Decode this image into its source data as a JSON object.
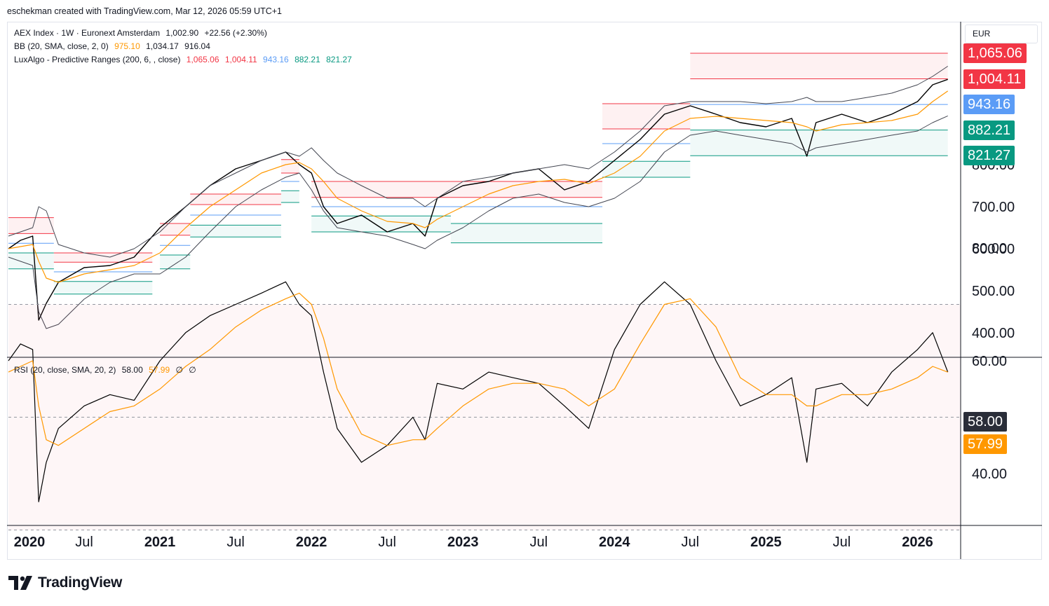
{
  "header": {
    "attribution": "eschekman created with TradingView.com, Mar 12, 2026 05:59 UTC+1"
  },
  "currency": "EUR",
  "legend": {
    "line1": {
      "name": "AEX Index · 1W · Euronext Amsterdam",
      "price": "1,002.90",
      "change": "+22.56 (+2.30%)"
    },
    "line2": {
      "name": "BB (20, SMA, close, 2, 0)",
      "basis": "975.10",
      "upper": "1,034.17",
      "lower": "916.04"
    },
    "line3": {
      "name": "LuxAlgo - Predictive Ranges (200, 6, , close)",
      "r2": "1,065.06",
      "r1": "1,004.11",
      "avg": "943.16",
      "s1": "882.21",
      "s2": "821.27"
    },
    "rsi": {
      "name": "RSI (20, close, SMA, 20, 2)",
      "rsi": "58.00",
      "ma": "57.99",
      "extra1": "∅",
      "extra2": "∅"
    }
  },
  "price_tags": [
    {
      "label": "1,065.06",
      "value": 1065.06,
      "color": "#f23645"
    },
    {
      "label": "1,004.11",
      "value": 1004.11,
      "color": "#f23645"
    },
    {
      "label": "943.16",
      "value": 943.16,
      "color": "#5b9cf6"
    },
    {
      "label": "882.21",
      "value": 882.21,
      "color": "#089981"
    },
    {
      "label": "821.27",
      "value": 821.27,
      "color": "#089981"
    }
  ],
  "rsi_tags": [
    {
      "label": "58.00",
      "value": 58.0,
      "color": "#2a2e39"
    },
    {
      "label": "57.99",
      "value": 57.99,
      "color": "#ff9800"
    }
  ],
  "logo": {
    "text": "TradingView"
  },
  "colors": {
    "price": "#000000",
    "basis": "#ff9800",
    "bands": "#434651",
    "resistance": "#f23645",
    "average": "#5b9cf6",
    "support": "#089981",
    "rsi": "#000000",
    "rsi_ma": "#ff9800"
  },
  "chart_data": [
    {
      "type": "line",
      "title": "AEX Index · 1W · Euronext Amsterdam",
      "y_axis_ticks": [
        "400.00",
        "500.00",
        "600.00",
        "700.00",
        "800.00"
      ],
      "ylim": [
        330,
        1120
      ],
      "x_axis_ticks": [
        "2020",
        "Jul",
        "2021",
        "Jul",
        "2022",
        "Jul",
        "2023",
        "Jul",
        "2024",
        "Jul",
        "2025",
        "Jul",
        "2026"
      ],
      "x": [
        2020.0,
        2020.08,
        2020.16,
        2020.2,
        2020.25,
        2020.33,
        2020.5,
        2020.67,
        2020.83,
        2021.0,
        2021.17,
        2021.33,
        2021.5,
        2021.67,
        2021.83,
        2021.92,
        2022.0,
        2022.08,
        2022.17,
        2022.33,
        2022.5,
        2022.67,
        2022.75,
        2022.83,
        2023.0,
        2023.17,
        2023.33,
        2023.5,
        2023.67,
        2023.83,
        2024.0,
        2024.17,
        2024.33,
        2024.5,
        2024.67,
        2024.83,
        2025.0,
        2025.17,
        2025.27,
        2025.33,
        2025.5,
        2025.67,
        2025.83,
        2026.0,
        2026.1,
        2026.2
      ],
      "series": [
        {
          "name": "AEX Index",
          "values": [
            600,
            620,
            630,
            430,
            470,
            520,
            555,
            560,
            580,
            650,
            700,
            750,
            790,
            810,
            830,
            800,
            780,
            700,
            660,
            680,
            640,
            660,
            630,
            720,
            750,
            760,
            780,
            790,
            740,
            760,
            810,
            860,
            920,
            940,
            920,
            900,
            890,
            910,
            820,
            900,
            920,
            900,
            920,
            950,
            990,
            1002.9
          ]
        },
        {
          "name": "BB (20, SMA, close, 2, 0) Basis",
          "values": [
            600,
            605,
            610,
            570,
            530,
            520,
            540,
            550,
            560,
            590,
            650,
            700,
            740,
            780,
            800,
            805,
            790,
            760,
            720,
            690,
            665,
            660,
            650,
            670,
            700,
            730,
            750,
            760,
            765,
            755,
            780,
            820,
            880,
            910,
            915,
            910,
            905,
            900,
            890,
            880,
            895,
            900,
            905,
            920,
            950,
            975.1
          ]
        },
        {
          "name": "BB (20, SMA, close, 2, 0) Upper",
          "values": [
            630,
            640,
            650,
            700,
            690,
            610,
            590,
            580,
            600,
            640,
            700,
            750,
            780,
            810,
            830,
            820,
            840,
            810,
            780,
            750,
            720,
            720,
            700,
            720,
            760,
            770,
            780,
            790,
            800,
            790,
            830,
            880,
            940,
            950,
            950,
            950,
            945,
            950,
            960,
            950,
            950,
            960,
            970,
            990,
            1010,
            1034.17
          ]
        },
        {
          "name": "BB (20, SMA, close, 2, 0) Lower",
          "values": [
            580,
            570,
            560,
            450,
            410,
            420,
            480,
            520,
            540,
            540,
            580,
            640,
            700,
            740,
            770,
            780,
            740,
            690,
            650,
            640,
            630,
            610,
            600,
            620,
            650,
            690,
            720,
            730,
            710,
            700,
            720,
            760,
            830,
            870,
            880,
            870,
            860,
            850,
            830,
            840,
            850,
            860,
            870,
            880,
            900,
            916.04
          ]
        }
      ]
    },
    {
      "type": "line",
      "title": "RSI (20, close, SMA, 20, 2)",
      "y_axis_ticks": [
        "40.00",
        "60.00",
        "80.00"
      ],
      "ylim": [
        27,
        82
      ],
      "x": [
        2020.0,
        2020.08,
        2020.16,
        2020.2,
        2020.25,
        2020.33,
        2020.5,
        2020.67,
        2020.83,
        2021.0,
        2021.17,
        2021.33,
        2021.5,
        2021.67,
        2021.83,
        2021.92,
        2022.0,
        2022.08,
        2022.17,
        2022.33,
        2022.5,
        2022.67,
        2022.75,
        2022.83,
        2023.0,
        2023.17,
        2023.33,
        2023.5,
        2023.67,
        2023.83,
        2024.0,
        2024.17,
        2024.33,
        2024.5,
        2024.67,
        2024.83,
        2025.0,
        2025.17,
        2025.27,
        2025.33,
        2025.5,
        2025.67,
        2025.83,
        2026.0,
        2026.1,
        2026.2
      ],
      "series": [
        {
          "name": "RSI",
          "values": [
            60,
            63,
            62,
            35,
            42,
            48,
            52,
            54,
            53,
            60,
            65,
            68,
            70,
            72,
            74,
            70,
            68,
            58,
            48,
            42,
            45,
            50,
            46,
            56,
            55,
            58,
            57,
            56,
            52,
            48,
            62,
            70,
            74,
            70,
            60,
            52,
            54,
            57,
            42,
            55,
            56,
            52,
            58,
            62,
            65,
            58.0
          ]
        },
        {
          "name": "RSI-based MA",
          "values": [
            58,
            59,
            60,
            52,
            46,
            45,
            48,
            51,
            52,
            55,
            59,
            62,
            66,
            69,
            71,
            72,
            70,
            64,
            55,
            47,
            45,
            46,
            46,
            48,
            52,
            55,
            56,
            56,
            55,
            52,
            55,
            63,
            70,
            71,
            66,
            57,
            54,
            54,
            52,
            52,
            54,
            54,
            55,
            57,
            59,
            57.99
          ]
        }
      ]
    }
  ]
}
